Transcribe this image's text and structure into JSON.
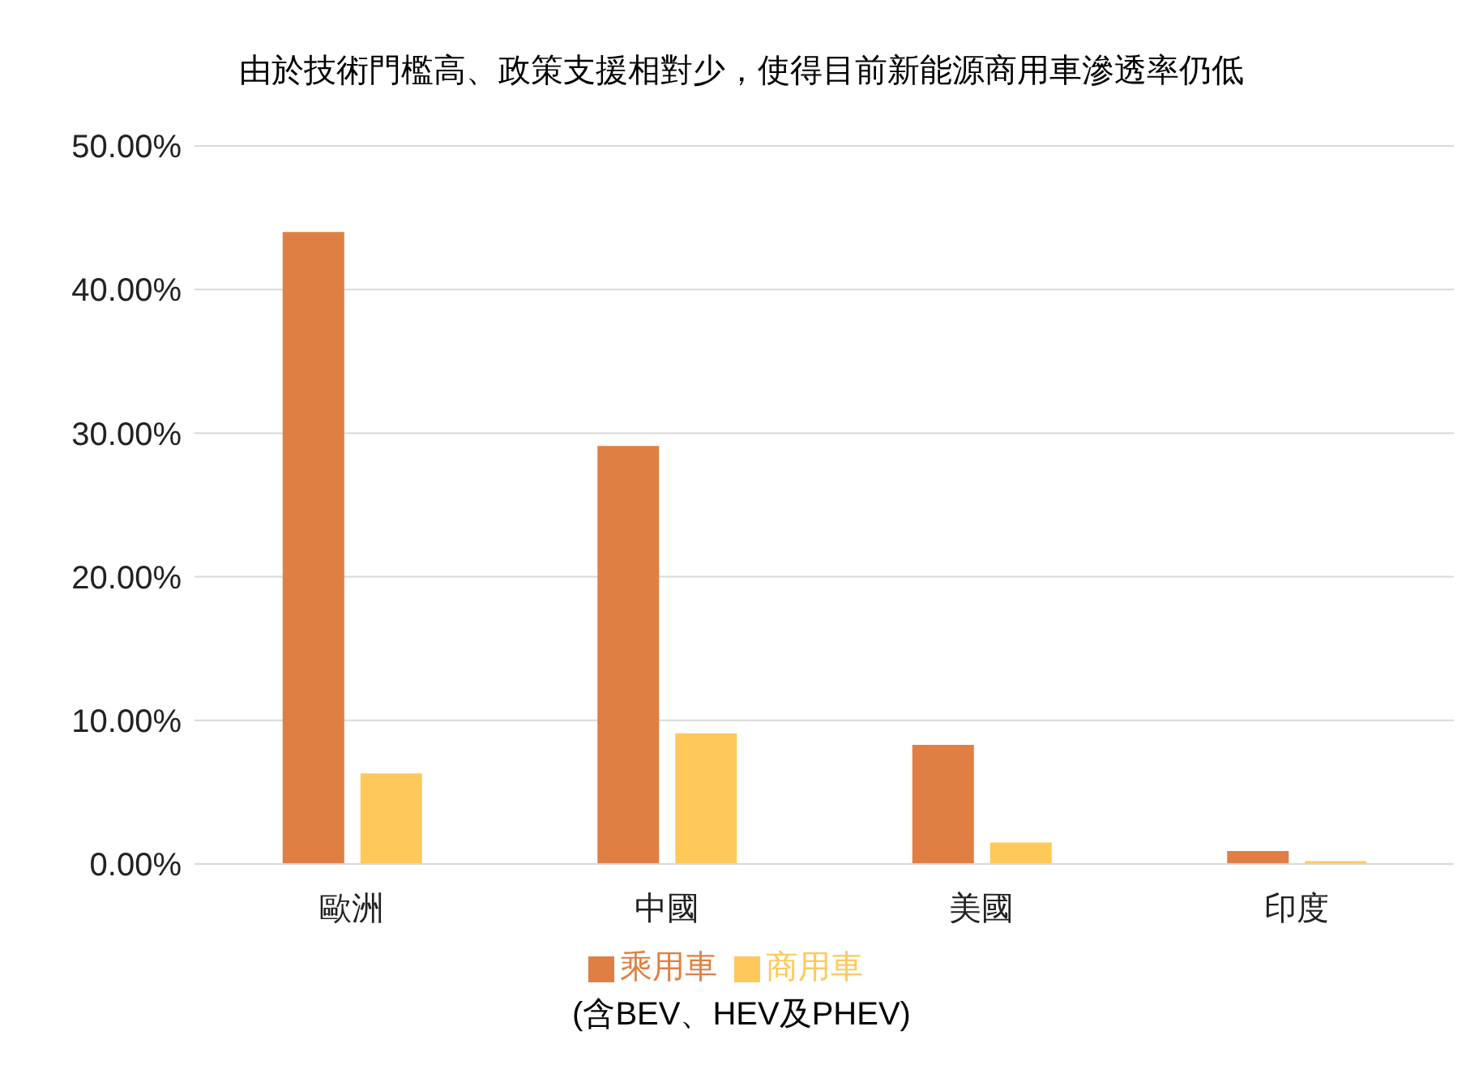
{
  "chart_data": {
    "type": "bar",
    "title": "由於技術門檻高、政策支援相對少，使得目前新能源商用車滲透率仍低",
    "categories": [
      "歐洲",
      "中國",
      "美國",
      "印度"
    ],
    "series": [
      {
        "name": "乘用車",
        "color": "#e07f43",
        "values": [
          44.0,
          29.1,
          8.3,
          0.9
        ]
      },
      {
        "name": "商用車",
        "color": "#fec95a",
        "values": [
          6.3,
          9.1,
          1.5,
          0.2
        ]
      }
    ],
    "ylim": [
      0,
      50
    ],
    "yticks": [
      {
        "value": 0,
        "label": "0.00%"
      },
      {
        "value": 10,
        "label": "10.00%"
      },
      {
        "value": 20,
        "label": "20.00%"
      },
      {
        "value": 30,
        "label": "30.00%"
      },
      {
        "value": 40,
        "label": "40.00%"
      },
      {
        "value": 50,
        "label": "50.00%"
      }
    ],
    "grid": "y",
    "legend": "bottom",
    "annotations": [
      "(含BEV、HEV及PHEV)"
    ]
  }
}
